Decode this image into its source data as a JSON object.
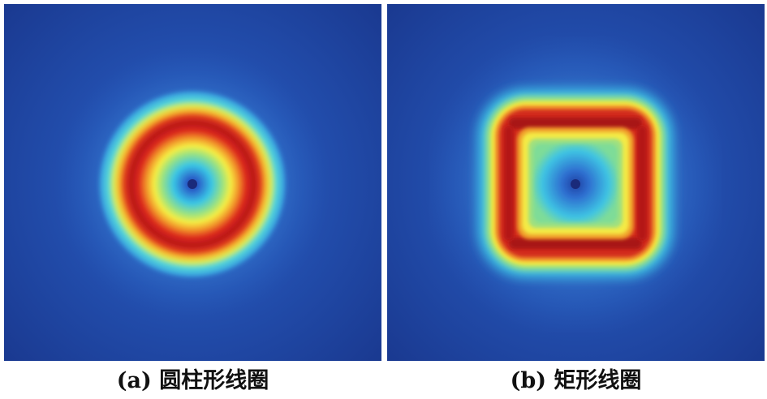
{
  "panels": [
    {
      "id": "a",
      "caption": "(a) 圆柱形线圈"
    },
    {
      "id": "b",
      "caption": "(b) 矩形线圈"
    }
  ],
  "colors": {
    "background_deep": "#1b3f96",
    "outer_blue": "#2c5fc0",
    "cyan": "#38c8e8",
    "green": "#8fe08a",
    "yellow": "#f5ee40",
    "orange": "#f08a28",
    "red": "#d8201e",
    "dark_red": "#b01418",
    "center_dot": "#1a2a7a"
  }
}
